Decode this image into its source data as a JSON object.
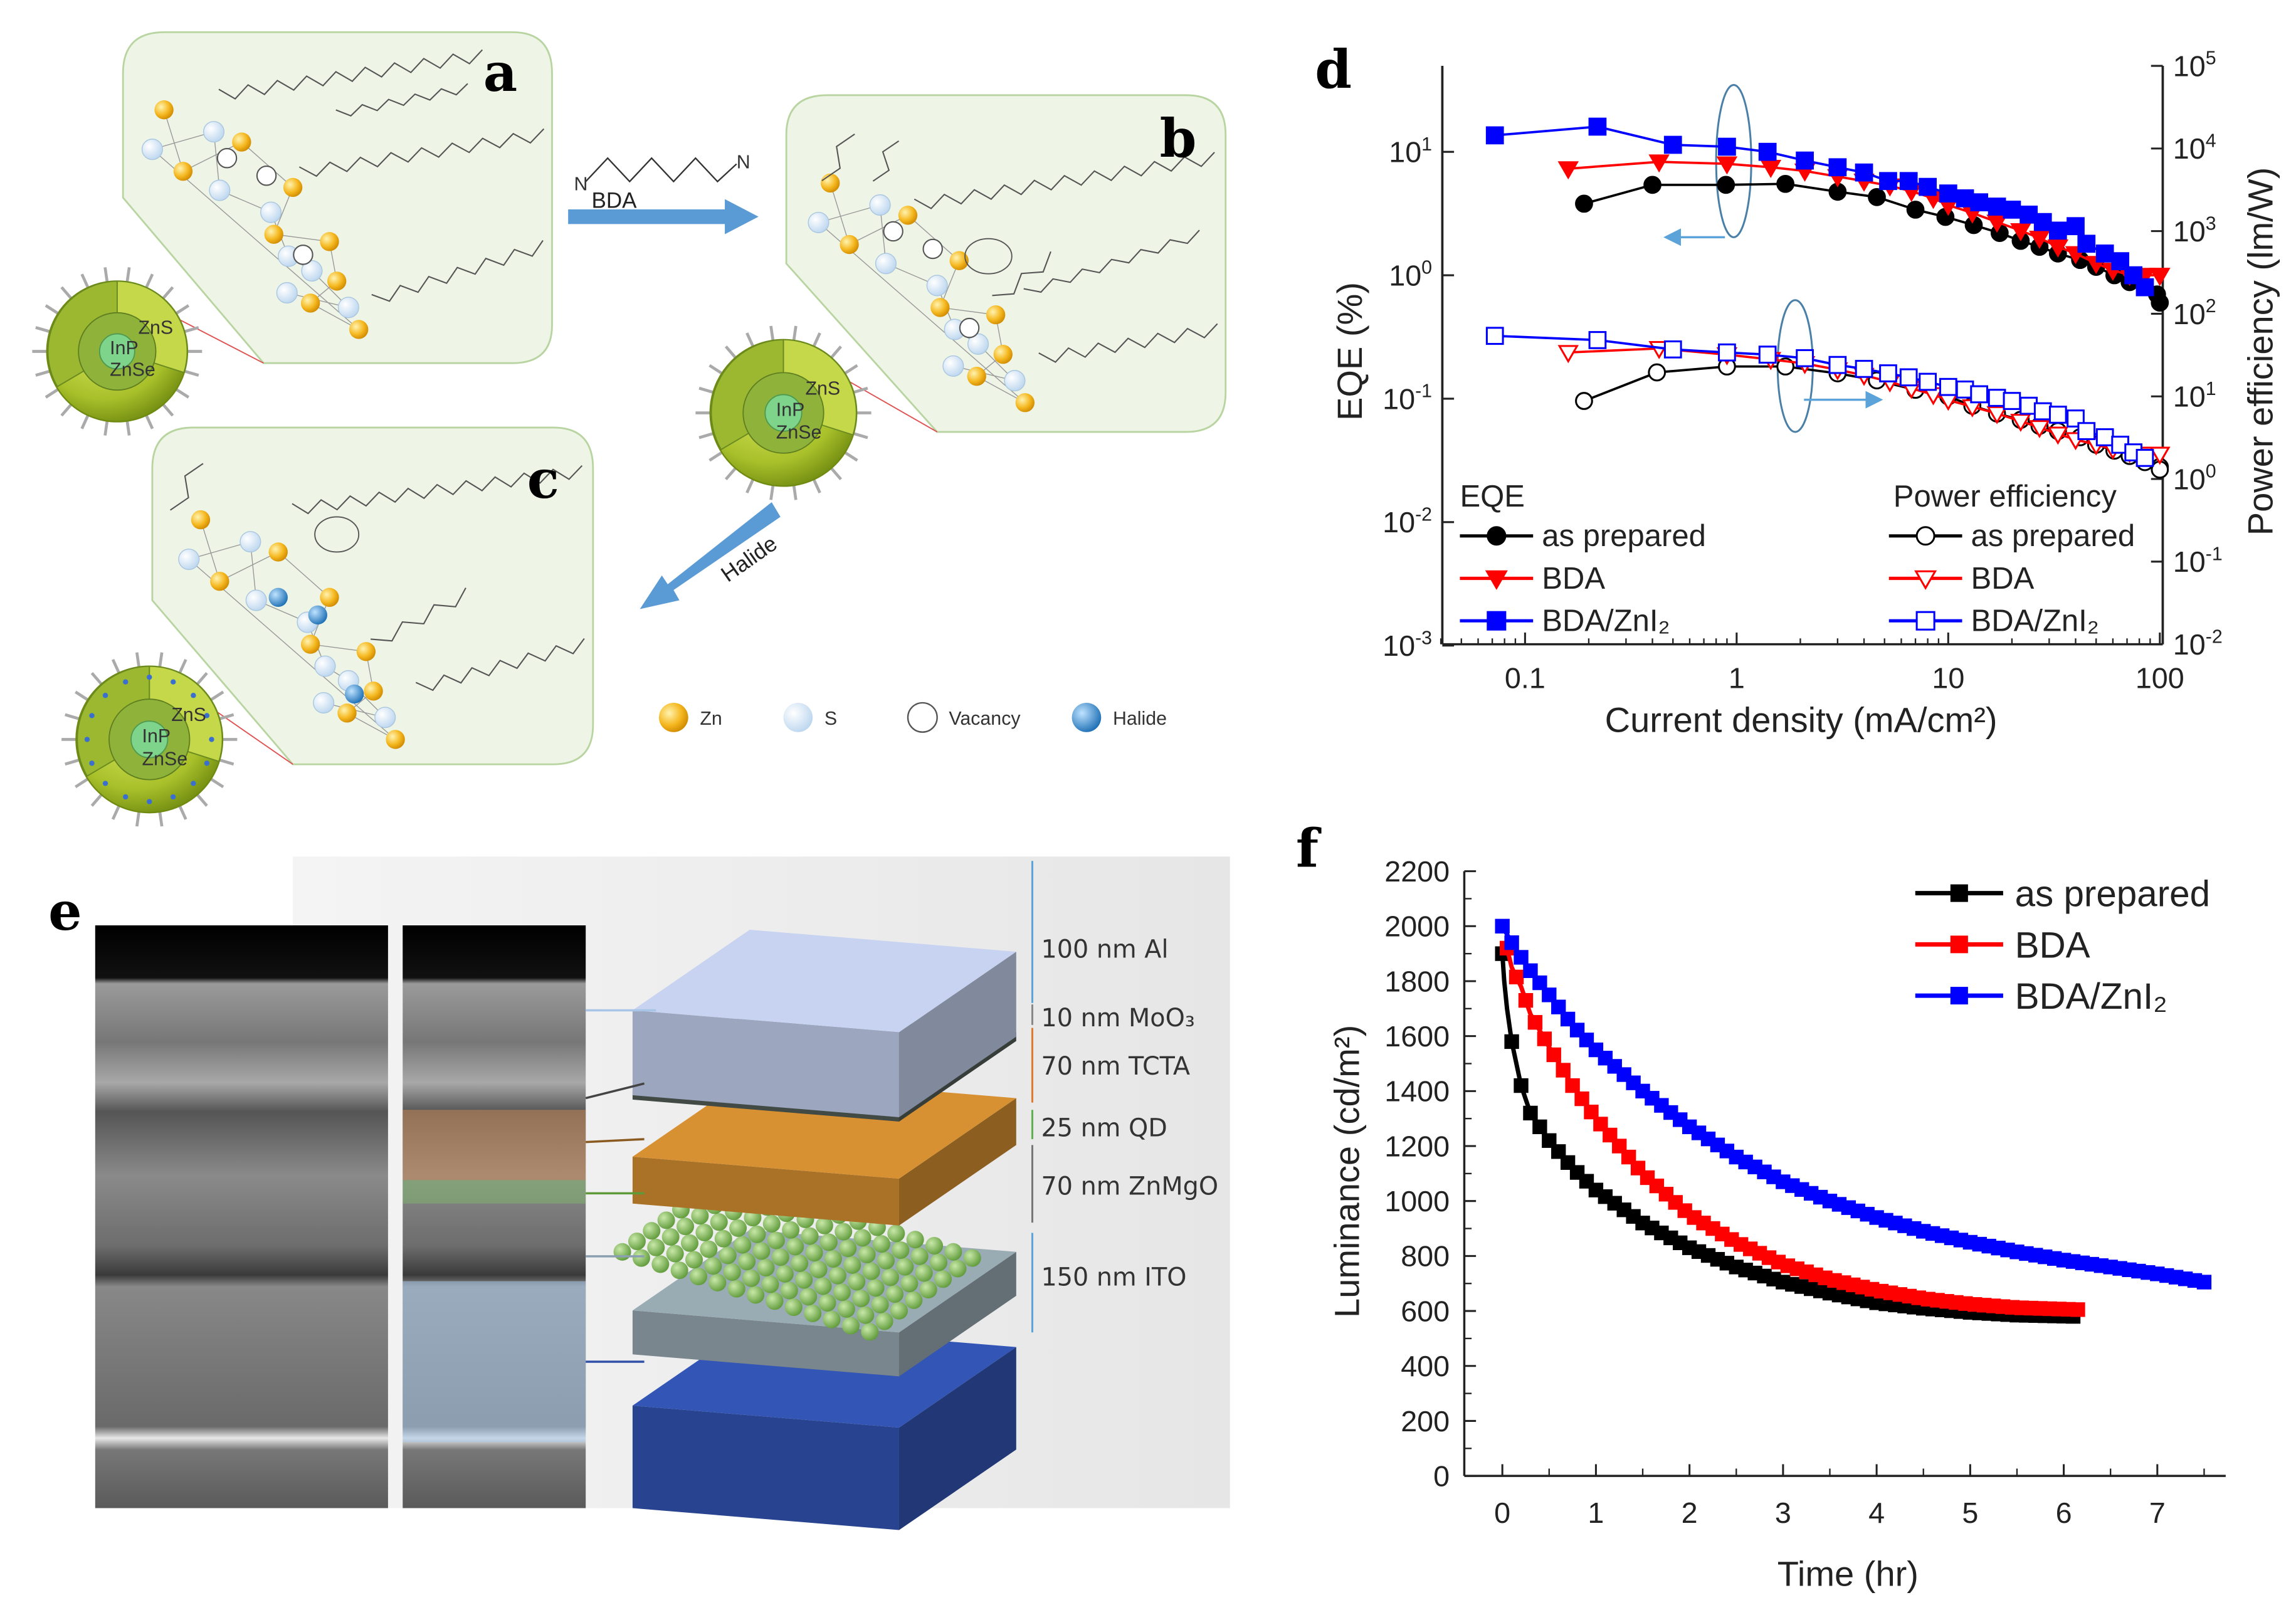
{
  "panel_labels": {
    "a": "a",
    "b": "b",
    "c": "c",
    "d": "d",
    "e": "e",
    "f": "f"
  },
  "scheme": {
    "arrow_bda_label": "BDA",
    "bda_n_left": "N",
    "bda_n_right": "N",
    "arrow_halide_label": "Halide",
    "qd_labels": {
      "shell": "ZnS",
      "inner_shell": "ZnSe",
      "core": "InP"
    },
    "legend": [
      {
        "label": "Zn",
        "color": "#f5b820"
      },
      {
        "label": "S",
        "color": "#d4e6f6"
      },
      {
        "label": "Vacancy",
        "color": "#ffffff"
      },
      {
        "label": "Halide",
        "color": "#2f86cc"
      }
    ]
  },
  "device_stack": {
    "layers": [
      {
        "label": "100 nm Al",
        "color": "#b8c3df"
      },
      {
        "label": "10 nm MoO₃",
        "color": "#4e5752"
      },
      {
        "label": "70 nm TCTA",
        "color": "#c8862e"
      },
      {
        "label": "25 nm QD",
        "color": "#7fb15a"
      },
      {
        "label": "70 nm ZnMgO",
        "color": "#8e9ea6"
      },
      {
        "label": "150 nm ITO",
        "color": "#2f4fa8"
      }
    ]
  },
  "chart_data": [
    {
      "id": "d",
      "type": "line",
      "xlabel": "Current density (mA/cm²)",
      "ylabel_left": "EQE (%)",
      "ylabel_right": "Power efficiency (lm/W)",
      "xscale": "log",
      "yscale": "log",
      "xlim": [
        0.04,
        100
      ],
      "ylim_left": [
        0.001,
        50
      ],
      "ylim_right": [
        0.01,
        100000
      ],
      "xticks": [
        {
          "v": 0.1,
          "label": "0.1"
        },
        {
          "v": 1,
          "label": "1"
        },
        {
          "v": 10,
          "label": "10"
        },
        {
          "v": 100,
          "label": "100"
        }
      ],
      "yticks_left_exp": [
        -3,
        -2,
        -1,
        0,
        1
      ],
      "yticks_right_exp": [
        -2,
        -1,
        0,
        1,
        2,
        3,
        4,
        5
      ],
      "legend_left_title": "EQE",
      "legend_right_title": "Power efficiency",
      "series": [
        {
          "name": "as prepared",
          "group": "EQE",
          "axis": "left",
          "color": "#000000",
          "marker": "circle",
          "filled": true,
          "x": [
            0.19,
            0.4,
            0.89,
            1.7,
            3,
            4.6,
            7,
            9.7,
            13.2,
            17.5,
            22,
            27,
            33,
            42,
            50,
            61,
            72,
            85,
            97,
            110
          ],
          "y": [
            3.8,
            5.4,
            5.4,
            5.5,
            4.75,
            4.3,
            3.4,
            2.97,
            2.55,
            2.2,
            1.9,
            1.7,
            1.5,
            1.33,
            1.17,
            1.0,
            0.88,
            0.8,
            0.7,
            0.6
          ]
        },
        {
          "name": "BDA",
          "group": "EQE",
          "axis": "left",
          "color": "#ff0000",
          "marker": "triangle-down",
          "filled": true,
          "x": [
            0.16,
            0.43,
            0.9,
            1.45,
            2.1,
            3,
            4,
            5.3,
            6.7,
            8.5,
            10,
            13,
            17,
            22,
            27,
            33,
            40,
            50,
            60,
            72,
            85,
            100,
            110
          ],
          "y": [
            7.3,
            8.3,
            8.0,
            7.5,
            7.0,
            6.3,
            5.8,
            5.3,
            4.8,
            4.2,
            3.7,
            3.2,
            2.7,
            2.3,
            2.0,
            1.7,
            1.5,
            1.25,
            1.1,
            1.0,
            1.0,
            1.0,
            1.0
          ]
        },
        {
          "name": "BDA/ZnI₂",
          "group": "EQE",
          "axis": "left",
          "color": "#0000ff",
          "marker": "square",
          "filled": true,
          "x": [
            0.072,
            0.22,
            0.5,
            0.9,
            1.4,
            2.1,
            3,
            4,
            5.2,
            6.5,
            8,
            10,
            12,
            14,
            17,
            20,
            24,
            28,
            33,
            40,
            45,
            55,
            65,
            75,
            85
          ],
          "y": [
            13.6,
            16,
            11.4,
            11,
            10,
            8.5,
            7.5,
            6.8,
            5.8,
            5.8,
            5.2,
            4.6,
            4.2,
            3.9,
            3.6,
            3.4,
            3.1,
            2.7,
            2.3,
            2.5,
            1.8,
            1.5,
            1.3,
            1.0,
            0.8
          ]
        },
        {
          "name": "as prepared",
          "group": "Power efficiency",
          "axis": "right",
          "color": "#000000",
          "marker": "circle",
          "filled": false,
          "x": [
            0.19,
            0.42,
            0.9,
            1.7,
            3,
            4.6,
            7,
            10,
            13,
            17,
            22,
            27,
            33,
            42,
            50,
            61,
            72,
            85,
            100,
            110
          ],
          "y": [
            8.8,
            19.5,
            23,
            23,
            19,
            15.6,
            12,
            10,
            7.7,
            6.2,
            5.2,
            4.4,
            3.8,
            3.2,
            2.6,
            2.2,
            1.9,
            1.6,
            1.4,
            1.3
          ]
        },
        {
          "name": "BDA",
          "group": "Power efficiency",
          "axis": "right",
          "color": "#ff0000",
          "marker": "triangle-down",
          "filled": false,
          "x": [
            0.16,
            0.43,
            0.9,
            1.45,
            2.1,
            3,
            4,
            5.3,
            6.7,
            8.5,
            10,
            13,
            17,
            22,
            27,
            33,
            40,
            50,
            60,
            72,
            85,
            100,
            110
          ],
          "y": [
            34,
            38,
            32,
            28,
            25,
            21,
            18,
            15,
            12.5,
            10.5,
            9,
            7.5,
            6.2,
            5.0,
            4.2,
            3.5,
            3.0,
            2.6,
            2.3,
            2.1,
            2.0,
            2.0,
            2.0
          ]
        },
        {
          "name": "BDA/ZnI₂",
          "group": "Power efficiency",
          "axis": "right",
          "color": "#0000ff",
          "marker": "square",
          "filled": false,
          "x": [
            0.072,
            0.22,
            0.5,
            0.9,
            1.4,
            2.1,
            3,
            4,
            5.2,
            6.5,
            8,
            10,
            12,
            14,
            17,
            20,
            24,
            28,
            33,
            40,
            45,
            55,
            65,
            75,
            85
          ],
          "y": [
            54,
            48,
            37,
            34,
            32,
            29,
            24,
            21.5,
            19,
            17,
            15,
            13,
            12.1,
            10.6,
            9.6,
            8.8,
            7.7,
            6.6,
            6.0,
            5.4,
            3.8,
            3.2,
            2.6,
            2.1,
            1.8
          ]
        }
      ]
    },
    {
      "id": "f",
      "type": "line",
      "xlabel": "Time (hr)",
      "ylabel": "Luminance (cd/m²)",
      "xlim": [
        -0.4,
        7.7
      ],
      "ylim": [
        0,
        2200
      ],
      "xticks": [
        0,
        1,
        2,
        3,
        4,
        5,
        6,
        7
      ],
      "yticks": [
        0,
        200,
        400,
        600,
        800,
        1000,
        1200,
        1400,
        1600,
        1800,
        2000,
        2200
      ],
      "legend_position": "top-right",
      "series": [
        {
          "name": "as prepared",
          "color": "#000000",
          "x": [
            0,
            0.02,
            0.05,
            0.1,
            0.2,
            0.3,
            0.5,
            0.75,
            1,
            1.5,
            2,
            2.5,
            3,
            3.5,
            4,
            4.5,
            5,
            5.5,
            6.15
          ],
          "y": [
            1900,
            1800,
            1700,
            1580,
            1420,
            1320,
            1220,
            1120,
            1040,
            920,
            830,
            760,
            705,
            665,
            630,
            610,
            595,
            585,
            580
          ]
        },
        {
          "name": "BDA",
          "color": "#ff0000",
          "x": [
            0.05,
            0.1,
            0.2,
            0.3,
            0.5,
            0.75,
            1,
            1.5,
            2,
            2.5,
            3,
            3.5,
            4,
            4.5,
            5,
            5.5,
            6.15
          ],
          "y": [
            1920,
            1850,
            1780,
            1680,
            1560,
            1420,
            1300,
            1100,
            950,
            850,
            770,
            715,
            675,
            645,
            625,
            612,
            605
          ]
        },
        {
          "name": "BDA/ZnI₂",
          "color": "#0000ff",
          "x": [
            0,
            0.1,
            0.25,
            0.5,
            0.75,
            1,
            1.5,
            2,
            2.5,
            3,
            3.5,
            4,
            4.5,
            5,
            5.5,
            6,
            6.5,
            7,
            7.5
          ],
          "y": [
            2000,
            1940,
            1860,
            1750,
            1640,
            1550,
            1400,
            1270,
            1160,
            1070,
            1000,
            940,
            890,
            850,
            815,
            785,
            760,
            735,
            705
          ]
        }
      ]
    }
  ]
}
